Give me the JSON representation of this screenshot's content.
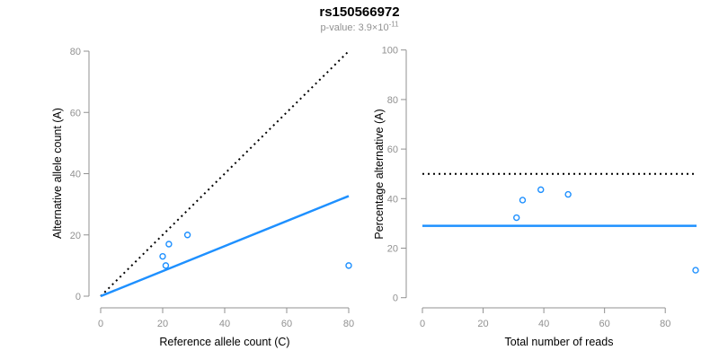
{
  "title": "rs150566972",
  "p_value": {
    "prefix": "p-value: 3.9×10",
    "exponent": "-11"
  },
  "colors": {
    "accent_blue": "#1E90FF",
    "dotted_black": "#000000",
    "axis_gray": "#919191",
    "text_black": "#000000",
    "background": "#ffffff"
  },
  "chart_data": [
    {
      "type": "scatter",
      "name": "allele-counts",
      "xlabel": "Reference allele count (C)",
      "ylabel": "Alternative allele count (A)",
      "xticks": [
        0,
        20,
        40,
        60,
        80
      ],
      "yticks": [
        0,
        20,
        40,
        60,
        80
      ],
      "xlim": [
        0,
        80
      ],
      "ylim": [
        0,
        80
      ],
      "grid": false,
      "legend": null,
      "points": [
        [
          21,
          10
        ],
        [
          20,
          13
        ],
        [
          22,
          17
        ],
        [
          28,
          20
        ],
        [
          80,
          10
        ]
      ],
      "lines": [
        {
          "name": "expected-heterozygous-identity",
          "style": "dotted",
          "color": "#000000",
          "x1": 0,
          "y1": 0,
          "x2": 80,
          "y2": 80
        },
        {
          "name": "observed-allele-ratio",
          "style": "solid",
          "color": "#1E90FF",
          "x1": 0,
          "y1": 0,
          "x2": 80,
          "y2": 32.7
        }
      ]
    },
    {
      "type": "scatter",
      "name": "percentage-alternative",
      "xlabel": "Total number of reads",
      "ylabel": "Percentage alternative (A)",
      "xticks": [
        0,
        20,
        40,
        60,
        80
      ],
      "yticks": [
        0,
        20,
        40,
        60,
        80,
        100
      ],
      "xlim": [
        0,
        90.3
      ],
      "ylim": [
        0,
        100
      ],
      "grid": false,
      "legend": null,
      "points": [
        [
          31,
          32.3
        ],
        [
          33,
          39.4
        ],
        [
          39,
          43.6
        ],
        [
          48,
          41.7
        ],
        [
          90,
          11.1
        ]
      ],
      "lines": [
        {
          "name": "expected-50-percent",
          "style": "dotted",
          "color": "#000000",
          "x1": 0,
          "y1": 50,
          "x2": 90.3,
          "y2": 50
        },
        {
          "name": "observed-mean-percentage",
          "style": "solid",
          "color": "#1E90FF",
          "x1": 0,
          "y1": 29,
          "x2": 90.3,
          "y2": 29
        }
      ]
    }
  ]
}
